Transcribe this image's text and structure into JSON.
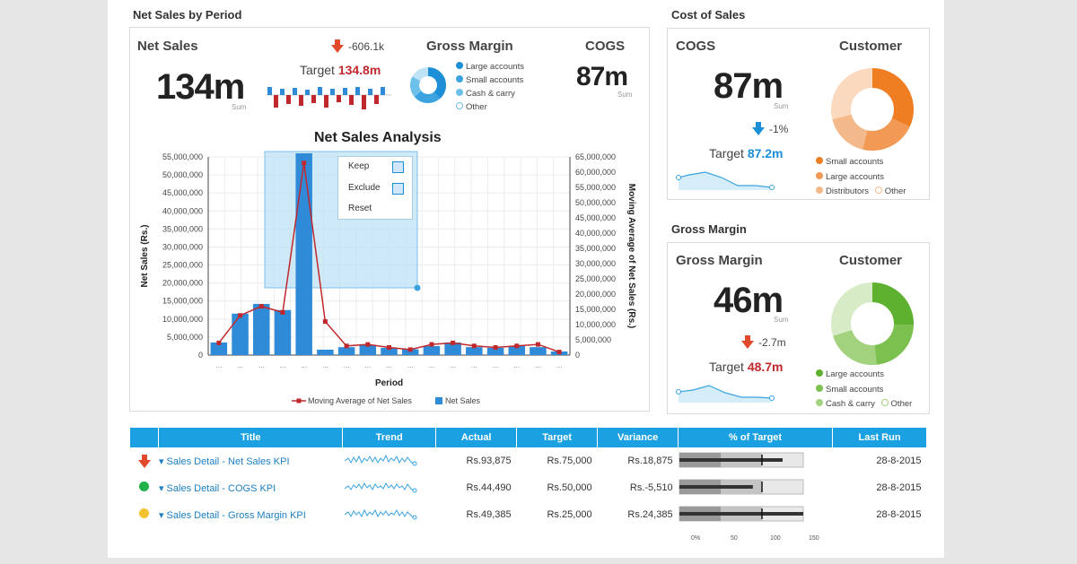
{
  "sections": {
    "net_sales_by_period": "Net Sales by Period",
    "cost_of_sales": "Cost of Sales",
    "gross_margin": "Gross Margin"
  },
  "net_sales_kpi": {
    "title": "Net Sales",
    "value": "134m",
    "sum_label": "Sum",
    "delta": "-606.1k",
    "target_label": "Target",
    "target_value": "134.8m"
  },
  "gross_margin_kpi_top": {
    "title": "Gross Margin",
    "legend": [
      {
        "label": "Large accounts",
        "color": "#1c8fd6",
        "hollow": false
      },
      {
        "label": "Small accounts",
        "color": "#3aa3e0",
        "hollow": false
      },
      {
        "label": "Cash & carry",
        "color": "#6cc0ea",
        "hollow": false
      },
      {
        "label": "Other",
        "color": "#6cc0ea",
        "hollow": true
      }
    ]
  },
  "cogs_kpi_top": {
    "title": "COGS",
    "value": "87m",
    "sum_label": "Sum"
  },
  "chart_title": "Net Sales Analysis",
  "context_menu": {
    "keep": "Keep",
    "exclude": "Exclude",
    "reset": "Reset"
  },
  "chart_data": {
    "type": "bar",
    "title": "Net Sales Analysis",
    "xlabel": "Period",
    "ylabel": "Net Sales (Rs.)",
    "y2label": "Moving Average of Net Sales (Rs.)",
    "categories": [
      "...",
      "...",
      "...",
      "...",
      "...",
      "...",
      "...",
      "...",
      "...",
      "...",
      "...",
      "...",
      "...",
      "...",
      "...",
      "...",
      "..."
    ],
    "series": [
      {
        "name": "Net Sales",
        "type": "bar",
        "color": "#2f8ad8",
        "values": [
          3500000,
          11500000,
          14200000,
          12500000,
          56000000,
          1500000,
          2200000,
          2800000,
          2000000,
          1600000,
          2500000,
          3500000,
          2200000,
          2000000,
          2500000,
          2200000,
          1000000
        ]
      },
      {
        "name": "Moving Average of Net Sales",
        "type": "line",
        "color": "#c0282d",
        "values": [
          4000000,
          13000000,
          16000000,
          14000000,
          63000000,
          11000000,
          3000000,
          3500000,
          2500000,
          1800000,
          3500000,
          4000000,
          3000000,
          2500000,
          3000000,
          3500000,
          1000000
        ]
      }
    ],
    "ylim": [
      0,
      55000000
    ],
    "yticks": [
      "0",
      "5,000,000",
      "10,000,000",
      "15,000,000",
      "20,000,000",
      "25,000,000",
      "30,000,000",
      "35,000,000",
      "40,000,000",
      "45,000,000",
      "50,000,000",
      "55,000,000"
    ],
    "y2lim": [
      0,
      65000000
    ],
    "y2ticks": [
      "0",
      "5,000,000",
      "10,000,000",
      "15,000,000",
      "20,000,000",
      "25,000,000",
      "30,000,000",
      "35,000,000",
      "40,000,000",
      "45,000,000",
      "50,000,000",
      "55,000,000",
      "60,000,000",
      "65,000,000"
    ],
    "legend": [
      "Moving Average of Net Sales",
      "Net Sales"
    ],
    "legend_position": "bottom"
  },
  "cos_cogs": {
    "title": "COGS",
    "value": "87m",
    "sum_label": "Sum",
    "delta": "-1%",
    "target_label": "Target",
    "target_value": "87.2m"
  },
  "cos_customer": {
    "title": "Customer",
    "legend": [
      {
        "label": "Small accounts",
        "color": "#ef7d22",
        "hollow": false
      },
      {
        "label": "Large accounts",
        "color": "#f29a55",
        "hollow": false
      },
      {
        "label": "Distributors",
        "color": "#f4b98a",
        "hollow": false
      },
      {
        "label": "Other",
        "color": "#f4b98a",
        "hollow": true
      }
    ]
  },
  "gm_kpi": {
    "title": "Gross Margin",
    "value": "46m",
    "sum_label": "Sum",
    "delta": "-2.7m",
    "target_label": "Target",
    "target_value": "48.7m"
  },
  "gm_customer": {
    "title": "Customer",
    "legend": [
      {
        "label": "Large accounts",
        "color": "#5db12f",
        "hollow": false
      },
      {
        "label": "Small accounts",
        "color": "#7cc04f",
        "hollow": false
      },
      {
        "label": "Cash & carry",
        "color": "#a3d27f",
        "hollow": false
      },
      {
        "label": "Other",
        "color": "#a3d27f",
        "hollow": true
      }
    ]
  },
  "table": {
    "headers": [
      "Title",
      "Trend",
      "Actual",
      "Target",
      "Variance",
      "% of Target",
      "Last Run"
    ],
    "rows": [
      {
        "status": "down-arrow",
        "title": "Sales Detail - Net Sales KPI",
        "actual": "Rs.93,875",
        "target": "Rs.75,000",
        "variance": "Rs.18,875",
        "pct": 125,
        "last_run": "28-8-2015"
      },
      {
        "status": "green",
        "title": "Sales Detail - COGS KPI",
        "actual": "Rs.44,490",
        "target": "Rs.50,000",
        "variance": "Rs.-5,510",
        "pct": 89,
        "last_run": "28-8-2015"
      },
      {
        "status": "yellow",
        "title": "Sales Detail - Gross Margin KPI",
        "actual": "Rs.49,385",
        "target": "Rs.25,000",
        "variance": "Rs.24,385",
        "pct": 198,
        "last_run": "28-8-2015"
      }
    ],
    "scale_ticks": [
      "0%",
      "50",
      "100",
      "150"
    ]
  },
  "colors": {
    "accent": "#1ba1e2",
    "red": "#c0282d",
    "blue": "#1c8fd6",
    "orange": "#ef7d22",
    "green": "#5db12f"
  }
}
